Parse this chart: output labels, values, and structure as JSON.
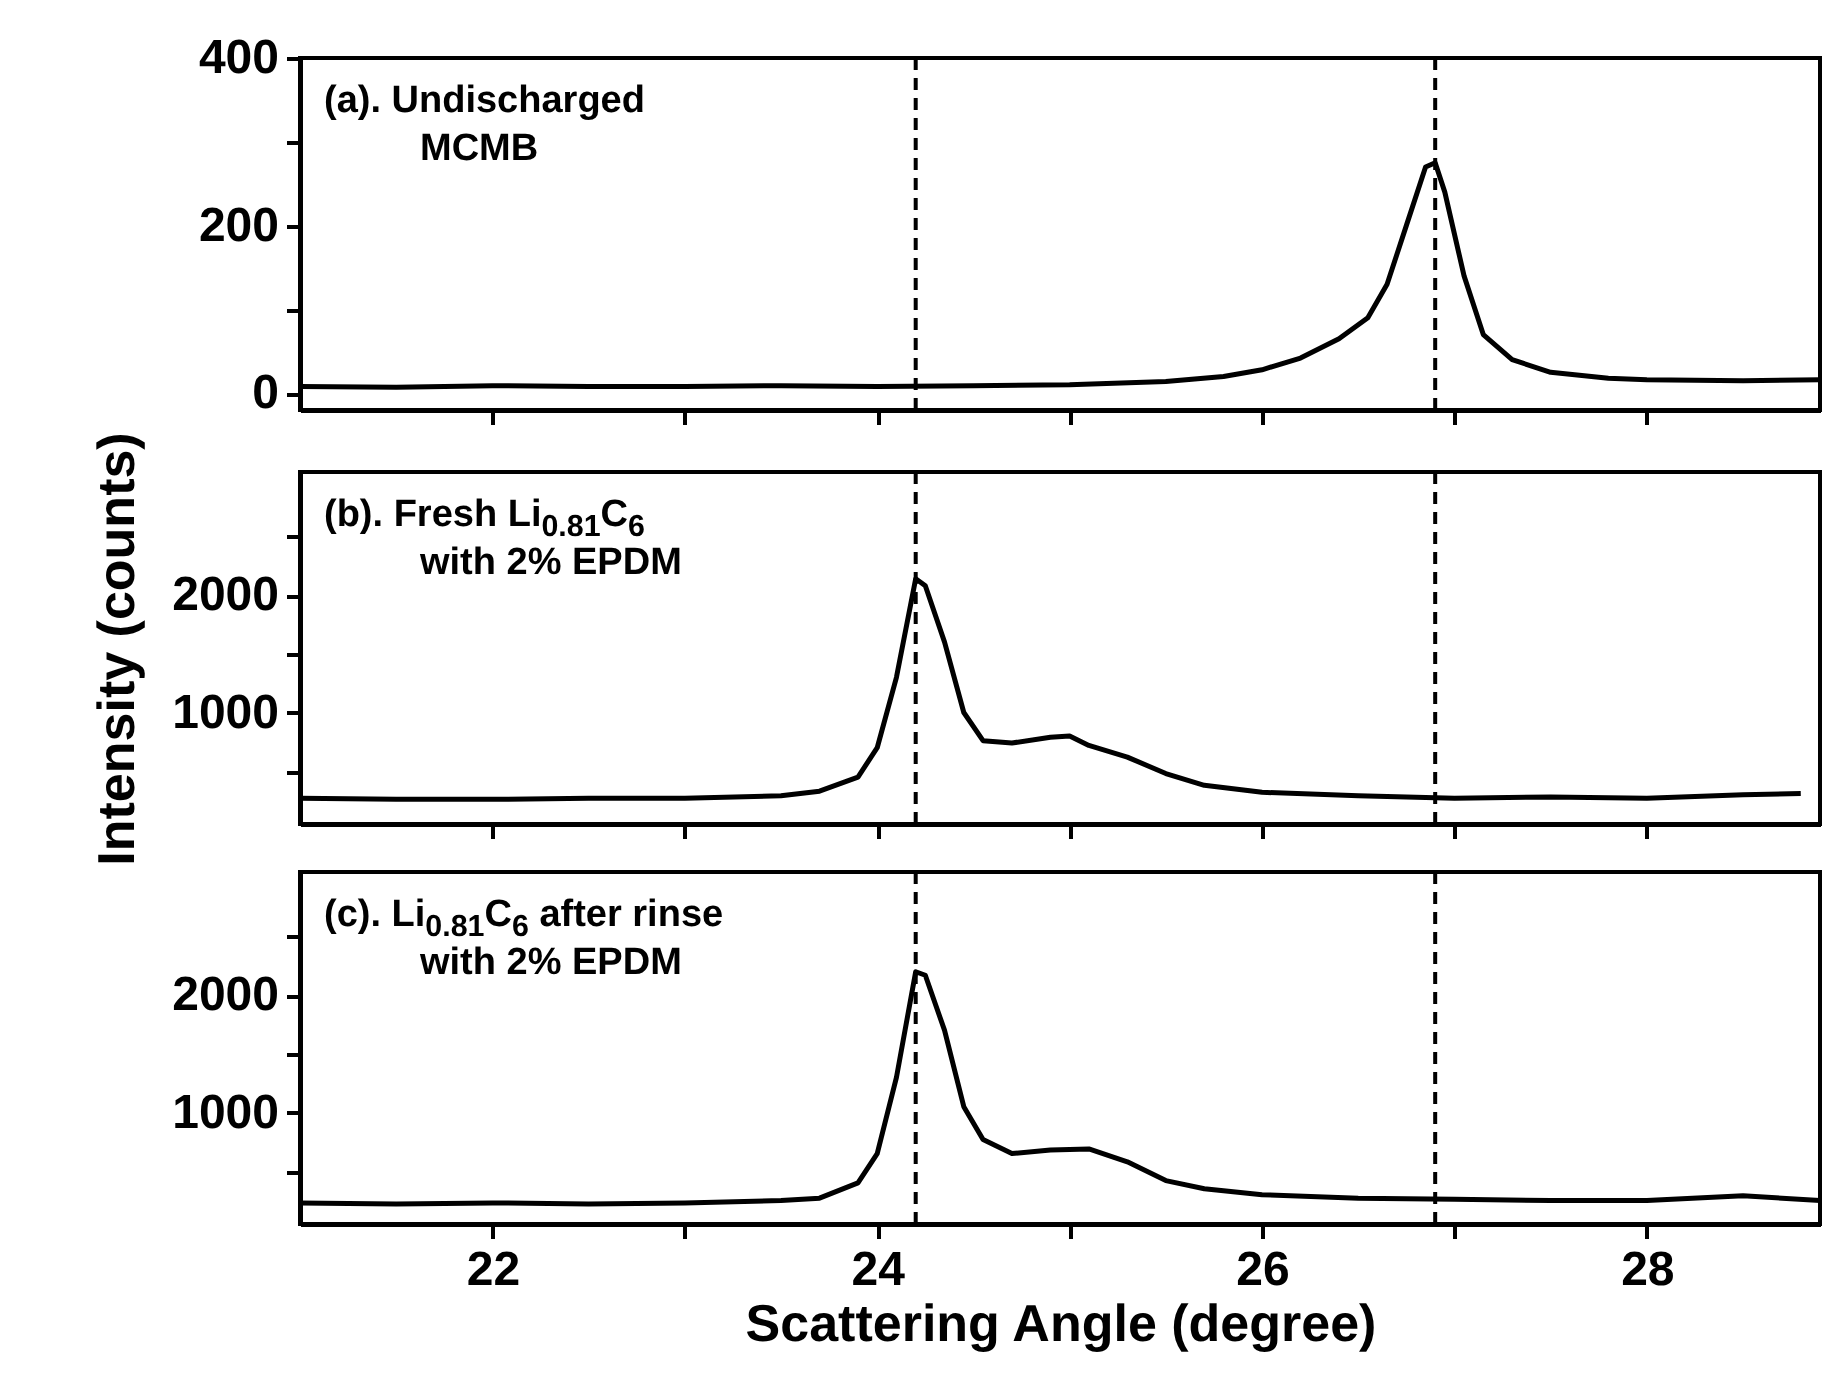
{
  "chart_data": [
    {
      "type": "line",
      "annotations": [
        "(a). Undischarged",
        "MCMB"
      ],
      "tick_labels": "y",
      "xlim": [
        21,
        28.9
      ],
      "xticks": [
        22,
        {
          "value": 23,
          "label": null
        },
        24,
        {
          "value": 25,
          "label": null
        },
        26,
        {
          "value": 27,
          "label": null
        },
        28
      ],
      "ylim": [
        -20,
        400
      ],
      "yticks": [
        0,
        {
          "value": 100,
          "label": null
        },
        200,
        {
          "value": 300,
          "label": null
        },
        400
      ],
      "grid": false,
      "ref_lines": [
        {
          "axis": "x",
          "value": 24.2,
          "line_style": "dashed"
        },
        {
          "axis": "x",
          "value": 26.9,
          "line_style": "dashed"
        }
      ],
      "series": [
        {
          "color": "#000000",
          "x": [
            21,
            21.5,
            22,
            22.5,
            23,
            23.5,
            24,
            24.5,
            25,
            25.5,
            25.8,
            26,
            26.2,
            26.4,
            26.55,
            26.65,
            26.75,
            26.85,
            26.9,
            26.95,
            27.05,
            27.15,
            27.3,
            27.5,
            27.8,
            28,
            28.5,
            28.9
          ],
          "values": [
            8,
            7,
            9,
            8,
            8,
            9,
            8,
            9,
            10,
            14,
            20,
            28,
            42,
            65,
            90,
            130,
            200,
            270,
            275,
            240,
            140,
            70,
            40,
            25,
            18,
            16,
            15,
            16
          ]
        }
      ]
    },
    {
      "type": "line",
      "annotations": [
        "(b). Fresh Li$_{0.81}$C$_{6}$",
        "with 2% EPDM"
      ],
      "ylabel": "Intensity (counts)",
      "tick_labels": "y",
      "xlim": [
        21,
        28.9
      ],
      "xticks": [
        22,
        {
          "value": 23,
          "label": null
        },
        24,
        {
          "value": 25,
          "label": null
        },
        26,
        {
          "value": 27,
          "label": null
        },
        28
      ],
      "ylim": [
        50,
        3050
      ],
      "yticks": [
        {
          "value": 500,
          "label": null
        },
        1000,
        {
          "value": 1500,
          "label": null
        },
        2000,
        {
          "value": 2500,
          "label": null
        }
      ],
      "grid": false,
      "ref_lines": [
        {
          "axis": "x",
          "value": 24.2,
          "line_style": "dashed"
        },
        {
          "axis": "x",
          "value": 26.9,
          "line_style": "dashed"
        }
      ],
      "series": [
        {
          "color": "#000000",
          "x": [
            21,
            21.5,
            22,
            22.5,
            23,
            23.5,
            23.7,
            23.9,
            24.0,
            24.1,
            24.2,
            24.25,
            24.35,
            24.45,
            24.55,
            24.7,
            24.9,
            25.0,
            25.1,
            25.3,
            25.5,
            25.7,
            26,
            26.5,
            27,
            27.5,
            28,
            28.5,
            28.8
          ],
          "values": [
            270,
            260,
            260,
            270,
            270,
            290,
            330,
            450,
            700,
            1300,
            2140,
            2080,
            1600,
            1000,
            760,
            740,
            790,
            800,
            720,
            620,
            480,
            380,
            320,
            290,
            270,
            280,
            270,
            300,
            310
          ]
        }
      ]
    },
    {
      "type": "line",
      "annotations": [
        "(c). Li$_{0.81}$C$_{6}$ after rinse",
        "with 2% EPDM"
      ],
      "xlabel": "Scattering Angle (degree)",
      "xlim": [
        21,
        28.9
      ],
      "xticks": [
        22,
        {
          "value": 23,
          "label": null
        },
        24,
        {
          "value": 25,
          "label": null
        },
        26,
        {
          "value": 27,
          "label": null
        },
        28
      ],
      "ylim": [
        50,
        3050
      ],
      "yticks": [
        {
          "value": 500,
          "label": null
        },
        1000,
        {
          "value": 1500,
          "label": null
        },
        2000,
        {
          "value": 2500,
          "label": null
        }
      ],
      "grid": false,
      "ref_lines": [
        {
          "axis": "x",
          "value": 24.2,
          "line_style": "dashed"
        },
        {
          "axis": "x",
          "value": 26.9,
          "line_style": "dashed"
        }
      ],
      "series": [
        {
          "color": "#000000",
          "x": [
            21,
            21.5,
            22,
            22.5,
            23,
            23.5,
            23.7,
            23.9,
            24.0,
            24.1,
            24.2,
            24.25,
            24.35,
            24.45,
            24.55,
            24.7,
            24.9,
            25.1,
            25.3,
            25.5,
            25.7,
            26,
            26.5,
            27,
            27.5,
            28,
            28.5,
            28.9
          ],
          "values": [
            230,
            220,
            230,
            220,
            230,
            250,
            270,
            400,
            650,
            1300,
            2200,
            2170,
            1700,
            1050,
            770,
            650,
            680,
            690,
            580,
            420,
            350,
            300,
            270,
            260,
            250,
            250,
            290,
            250
          ]
        }
      ]
    }
  ]
}
